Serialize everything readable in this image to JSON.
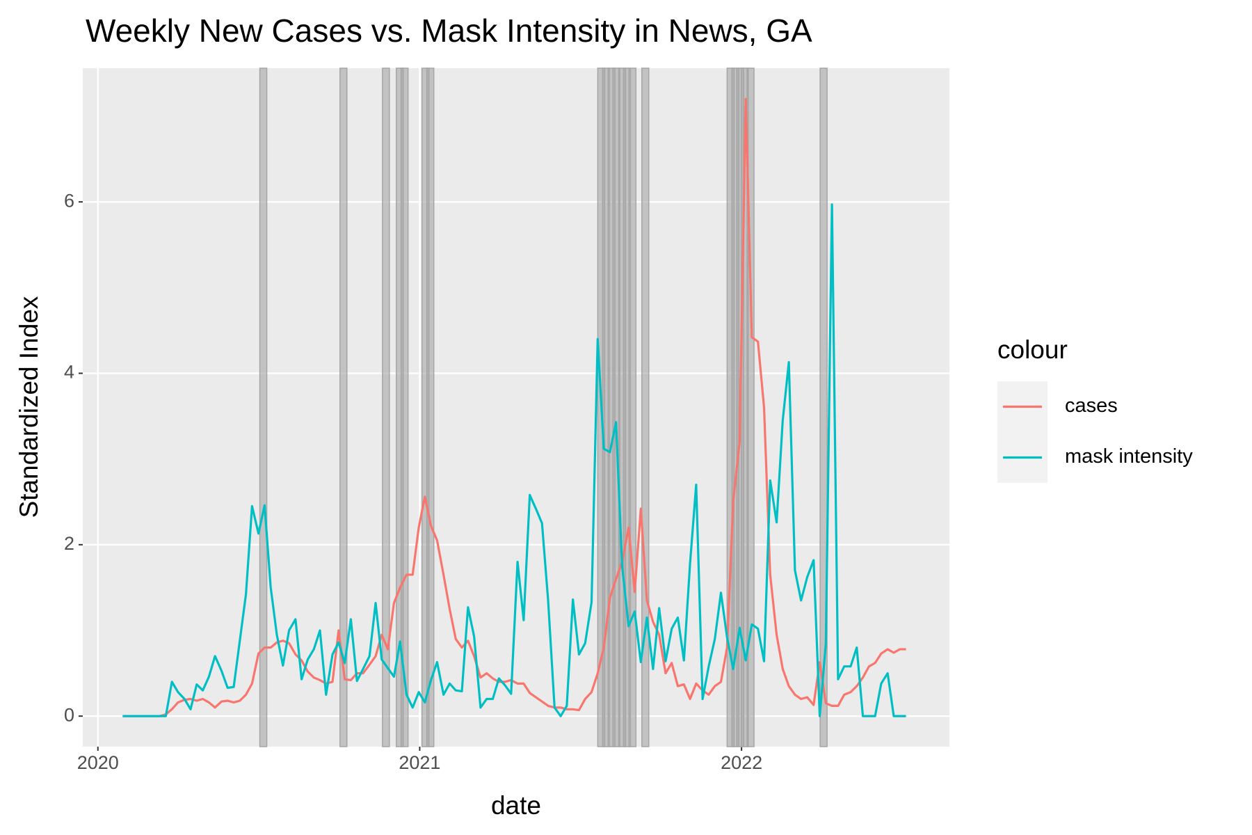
{
  "chart_data": {
    "type": "line",
    "title": "Weekly New Cases vs. Mask Intensity in News, GA",
    "x_label": "date",
    "y_label": "Standardized Index",
    "legend_title": "colour",
    "legend_position": "right",
    "grid": true,
    "panel_color": "#ebebeb",
    "xlim": [
      2019.953,
      2022.646
    ],
    "ylim": [
      -0.356,
      7.56
    ],
    "xticks": [
      2020,
      2021,
      2022
    ],
    "yticks": [
      0,
      2,
      4,
      6
    ],
    "highlight_x": [
      2020.514,
      2020.763,
      2020.895,
      2020.938,
      2020.953,
      2021.018,
      2021.033,
      2021.564,
      2021.579,
      2021.596,
      2021.611,
      2021.629,
      2021.644,
      2021.661,
      2021.701,
      2021.966,
      2021.981,
      2021.996,
      2022.01,
      2022.028,
      2022.255
    ],
    "highlight_color": "#a6a6a6",
    "x": [
      2020.077,
      2020.096,
      2020.115,
      2020.134,
      2020.154,
      2020.173,
      2020.192,
      2020.211,
      2020.23,
      2020.249,
      2020.269,
      2020.288,
      2020.307,
      2020.326,
      2020.345,
      2020.364,
      2020.384,
      2020.403,
      2020.422,
      2020.441,
      2020.46,
      2020.479,
      2020.499,
      2020.518,
      2020.537,
      2020.556,
      2020.575,
      2020.594,
      2020.614,
      2020.633,
      2020.652,
      2020.671,
      2020.69,
      2020.709,
      2020.729,
      2020.748,
      2020.767,
      2020.786,
      2020.805,
      2020.824,
      2020.844,
      2020.863,
      2020.882,
      2020.901,
      2020.92,
      2020.939,
      2020.959,
      2020.978,
      2020.997,
      2021.016,
      2021.035,
      2021.054,
      2021.074,
      2021.093,
      2021.112,
      2021.131,
      2021.15,
      2021.169,
      2021.189,
      2021.208,
      2021.227,
      2021.246,
      2021.265,
      2021.284,
      2021.304,
      2021.323,
      2021.342,
      2021.361,
      2021.38,
      2021.399,
      2021.419,
      2021.438,
      2021.457,
      2021.476,
      2021.495,
      2021.514,
      2021.534,
      2021.553,
      2021.572,
      2021.591,
      2021.61,
      2021.629,
      2021.649,
      2021.668,
      2021.687,
      2021.706,
      2021.725,
      2021.744,
      2021.764,
      2021.783,
      2021.802,
      2021.821,
      2021.84,
      2021.859,
      2021.879,
      2021.898,
      2021.917,
      2021.936,
      2021.955,
      2021.974,
      2021.994,
      2022.013,
      2022.032,
      2022.051,
      2022.07,
      2022.089,
      2022.109,
      2022.128,
      2022.147,
      2022.166,
      2022.185,
      2022.204,
      2022.224,
      2022.243,
      2022.262,
      2022.281,
      2022.3,
      2022.319,
      2022.339,
      2022.358,
      2022.377,
      2022.396,
      2022.415,
      2022.434,
      2022.454,
      2022.473,
      2022.492,
      2022.511
    ],
    "series": [
      {
        "name": "cases",
        "color": "#F8766D",
        "values": [
          0,
          0,
          0,
          0,
          0,
          0,
          0,
          0.02,
          0.08,
          0.16,
          0.19,
          0.2,
          0.18,
          0.2,
          0.16,
          0.1,
          0.17,
          0.18,
          0.16,
          0.18,
          0.25,
          0.38,
          0.73,
          0.8,
          0.8,
          0.86,
          0.88,
          0.85,
          0.72,
          0.65,
          0.52,
          0.45,
          0.42,
          0.38,
          0.4,
          1.0,
          0.43,
          0.42,
          0.5,
          0.5,
          0.6,
          0.7,
          0.95,
          0.78,
          1.32,
          1.5,
          1.65,
          1.65,
          2.2,
          2.56,
          2.22,
          2.05,
          1.65,
          1.25,
          0.9,
          0.8,
          0.88,
          0.7,
          0.45,
          0.5,
          0.44,
          0.4,
          0.4,
          0.42,
          0.38,
          0.38,
          0.27,
          0.22,
          0.17,
          0.12,
          0.1,
          0.1,
          0.08,
          0.08,
          0.07,
          0.2,
          0.28,
          0.5,
          0.8,
          1.38,
          1.6,
          1.8,
          2.2,
          1.45,
          2.42,
          1.35,
          1.1,
          0.95,
          0.5,
          0.62,
          0.35,
          0.37,
          0.2,
          0.38,
          0.3,
          0.25,
          0.35,
          0.4,
          0.8,
          2.5,
          3.2,
          7.2,
          4.42,
          4.37,
          3.6,
          1.65,
          0.95,
          0.55,
          0.35,
          0.25,
          0.2,
          0.22,
          0.13,
          0.63,
          0.15,
          0.12,
          0.12,
          0.25,
          0.28,
          0.35,
          0.45,
          0.58,
          0.62,
          0.73,
          0.78,
          0.74,
          0.78,
          0.78
        ]
      },
      {
        "name": "mask intensity",
        "color": "#00BFC4",
        "values": [
          0,
          0,
          0,
          0,
          0,
          0,
          0,
          0,
          0.4,
          0.28,
          0.2,
          0.08,
          0.37,
          0.3,
          0.46,
          0.7,
          0.53,
          0.33,
          0.34,
          0.88,
          1.42,
          2.45,
          2.13,
          2.46,
          1.5,
          0.95,
          0.59,
          1.0,
          1.13,
          0.43,
          0.66,
          0.78,
          1.0,
          0.25,
          0.72,
          0.86,
          0.62,
          1.13,
          0.41,
          0.55,
          0.7,
          1.32,
          0.66,
          0.56,
          0.46,
          0.87,
          0.25,
          0.1,
          0.28,
          0.16,
          0.42,
          0.63,
          0.25,
          0.38,
          0.3,
          0.29,
          1.27,
          0.93,
          0.1,
          0.2,
          0.2,
          0.44,
          0.36,
          0.26,
          1.8,
          1.12,
          2.58,
          2.42,
          2.25,
          1.35,
          0.1,
          0,
          0.12,
          1.36,
          0.72,
          0.85,
          1.33,
          4.4,
          3.12,
          3.08,
          3.43,
          1.75,
          1.05,
          1.22,
          0.63,
          1.15,
          0.55,
          1.26,
          0.64,
          1.02,
          1.15,
          0.65,
          1.78,
          2.7,
          0.2,
          0.58,
          0.9,
          1.44,
          0.92,
          0.55,
          1.03,
          0.65,
          1.07,
          1.02,
          0.64,
          2.75,
          2.26,
          3.45,
          4.13,
          1.7,
          1.35,
          1.62,
          1.82,
          0,
          0.85,
          5.97,
          0.43,
          0.58,
          0.58,
          0.8,
          0,
          0,
          0,
          0.38,
          0.5,
          0,
          0,
          0
        ]
      }
    ]
  }
}
